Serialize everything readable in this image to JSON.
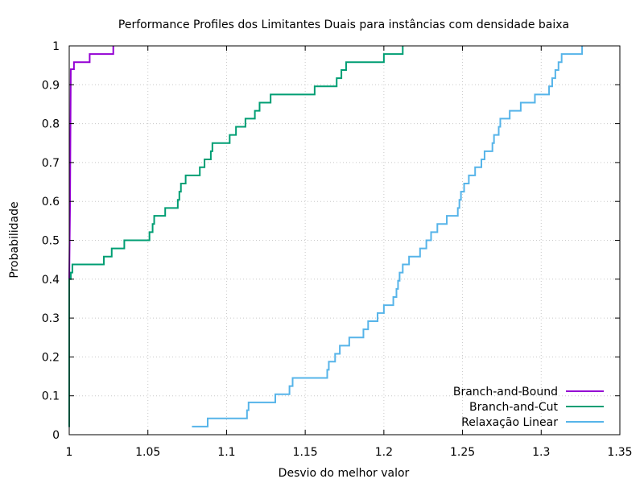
{
  "chart_data": {
    "type": "line",
    "title": "Performance Profiles dos Limitantes Duais para instâncias com densidade baixa",
    "xlabel": "Desvio do melhor valor",
    "ylabel": "Probabilidade",
    "xlim": [
      1,
      1.35
    ],
    "ylim": [
      0,
      1
    ],
    "xticks": [
      "1",
      "1.05",
      "1.1",
      "1.15",
      "1.2",
      "1.25",
      "1.3",
      "1.35"
    ],
    "yticks": [
      "0",
      "0.1",
      "0.2",
      "0.3",
      "0.4",
      "0.5",
      "0.6",
      "0.7",
      "0.8",
      "0.9",
      "1"
    ],
    "grid": true,
    "legend_position": "bottom-right",
    "series": [
      {
        "name": "Branch-and-Bound",
        "color": "#9400d3",
        "points": [
          [
            1.0,
            0.02
          ],
          [
            1.0,
            0.4
          ],
          [
            1.0005,
            0.58
          ],
          [
            1.001,
            0.94
          ],
          [
            1.003,
            0.94
          ],
          [
            1.003,
            0.958
          ],
          [
            1.013,
            0.958
          ],
          [
            1.013,
            0.979
          ],
          [
            1.028,
            0.979
          ],
          [
            1.028,
            1.0
          ]
        ]
      },
      {
        "name": "Branch-and-Cut",
        "color": "#009e73",
        "points": [
          [
            1.0,
            0.02
          ],
          [
            1.0,
            0.4
          ],
          [
            1.001,
            0.4
          ],
          [
            1.001,
            0.417
          ],
          [
            1.002,
            0.417
          ],
          [
            1.002,
            0.438
          ],
          [
            1.022,
            0.438
          ],
          [
            1.022,
            0.458
          ],
          [
            1.027,
            0.458
          ],
          [
            1.027,
            0.479
          ],
          [
            1.035,
            0.479
          ],
          [
            1.035,
            0.5
          ],
          [
            1.051,
            0.5
          ],
          [
            1.051,
            0.521
          ],
          [
            1.053,
            0.521
          ],
          [
            1.053,
            0.542
          ],
          [
            1.054,
            0.542
          ],
          [
            1.054,
            0.563
          ],
          [
            1.061,
            0.563
          ],
          [
            1.061,
            0.583
          ],
          [
            1.069,
            0.583
          ],
          [
            1.069,
            0.604
          ],
          [
            1.07,
            0.604
          ],
          [
            1.07,
            0.625
          ],
          [
            1.071,
            0.625
          ],
          [
            1.071,
            0.646
          ],
          [
            1.074,
            0.646
          ],
          [
            1.074,
            0.667
          ],
          [
            1.083,
            0.667
          ],
          [
            1.083,
            0.688
          ],
          [
            1.086,
            0.688
          ],
          [
            1.086,
            0.708
          ],
          [
            1.09,
            0.708
          ],
          [
            1.09,
            0.729
          ],
          [
            1.091,
            0.729
          ],
          [
            1.091,
            0.75
          ],
          [
            1.102,
            0.75
          ],
          [
            1.102,
            0.771
          ],
          [
            1.106,
            0.771
          ],
          [
            1.106,
            0.792
          ],
          [
            1.112,
            0.792
          ],
          [
            1.112,
            0.813
          ],
          [
            1.118,
            0.813
          ],
          [
            1.118,
            0.833
          ],
          [
            1.121,
            0.833
          ],
          [
            1.121,
            0.854
          ],
          [
            1.128,
            0.854
          ],
          [
            1.128,
            0.875
          ],
          [
            1.156,
            0.875
          ],
          [
            1.156,
            0.896
          ],
          [
            1.17,
            0.896
          ],
          [
            1.17,
            0.917
          ],
          [
            1.173,
            0.917
          ],
          [
            1.173,
            0.938
          ],
          [
            1.176,
            0.938
          ],
          [
            1.176,
            0.958
          ],
          [
            1.2,
            0.958
          ],
          [
            1.2,
            0.979
          ],
          [
            1.212,
            0.979
          ],
          [
            1.212,
            1.0
          ]
        ]
      },
      {
        "name": "Relaxação Linear",
        "color": "#56b4e9",
        "points": [
          [
            1.078,
            0.021
          ],
          [
            1.088,
            0.021
          ],
          [
            1.088,
            0.042
          ],
          [
            1.113,
            0.042
          ],
          [
            1.113,
            0.063
          ],
          [
            1.114,
            0.063
          ],
          [
            1.114,
            0.083
          ],
          [
            1.131,
            0.083
          ],
          [
            1.131,
            0.104
          ],
          [
            1.14,
            0.104
          ],
          [
            1.14,
            0.125
          ],
          [
            1.142,
            0.125
          ],
          [
            1.142,
            0.146
          ],
          [
            1.164,
            0.146
          ],
          [
            1.164,
            0.167
          ],
          [
            1.165,
            0.167
          ],
          [
            1.165,
            0.188
          ],
          [
            1.169,
            0.188
          ],
          [
            1.169,
            0.208
          ],
          [
            1.172,
            0.208
          ],
          [
            1.172,
            0.229
          ],
          [
            1.178,
            0.229
          ],
          [
            1.178,
            0.25
          ],
          [
            1.187,
            0.25
          ],
          [
            1.187,
            0.271
          ],
          [
            1.19,
            0.271
          ],
          [
            1.19,
            0.292
          ],
          [
            1.196,
            0.292
          ],
          [
            1.196,
            0.313
          ],
          [
            1.2,
            0.313
          ],
          [
            1.2,
            0.333
          ],
          [
            1.206,
            0.333
          ],
          [
            1.206,
            0.354
          ],
          [
            1.208,
            0.354
          ],
          [
            1.208,
            0.375
          ],
          [
            1.209,
            0.375
          ],
          [
            1.209,
            0.396
          ],
          [
            1.21,
            0.396
          ],
          [
            1.21,
            0.417
          ],
          [
            1.212,
            0.417
          ],
          [
            1.212,
            0.438
          ],
          [
            1.216,
            0.438
          ],
          [
            1.216,
            0.458
          ],
          [
            1.223,
            0.458
          ],
          [
            1.223,
            0.479
          ],
          [
            1.227,
            0.479
          ],
          [
            1.227,
            0.5
          ],
          [
            1.23,
            0.5
          ],
          [
            1.23,
            0.521
          ],
          [
            1.234,
            0.521
          ],
          [
            1.234,
            0.542
          ],
          [
            1.24,
            0.542
          ],
          [
            1.24,
            0.563
          ],
          [
            1.247,
            0.563
          ],
          [
            1.247,
            0.583
          ],
          [
            1.248,
            0.583
          ],
          [
            1.248,
            0.604
          ],
          [
            1.249,
            0.604
          ],
          [
            1.249,
            0.625
          ],
          [
            1.251,
            0.625
          ],
          [
            1.251,
            0.646
          ],
          [
            1.254,
            0.646
          ],
          [
            1.254,
            0.667
          ],
          [
            1.258,
            0.667
          ],
          [
            1.258,
            0.688
          ],
          [
            1.262,
            0.688
          ],
          [
            1.262,
            0.708
          ],
          [
            1.264,
            0.708
          ],
          [
            1.264,
            0.729
          ],
          [
            1.269,
            0.729
          ],
          [
            1.269,
            0.75
          ],
          [
            1.27,
            0.75
          ],
          [
            1.27,
            0.771
          ],
          [
            1.273,
            0.771
          ],
          [
            1.273,
            0.792
          ],
          [
            1.274,
            0.792
          ],
          [
            1.274,
            0.813
          ],
          [
            1.28,
            0.813
          ],
          [
            1.28,
            0.833
          ],
          [
            1.287,
            0.833
          ],
          [
            1.287,
            0.854
          ],
          [
            1.296,
            0.854
          ],
          [
            1.296,
            0.875
          ],
          [
            1.305,
            0.875
          ],
          [
            1.305,
            0.896
          ],
          [
            1.307,
            0.896
          ],
          [
            1.307,
            0.917
          ],
          [
            1.309,
            0.917
          ],
          [
            1.309,
            0.938
          ],
          [
            1.311,
            0.938
          ],
          [
            1.311,
            0.958
          ],
          [
            1.313,
            0.958
          ],
          [
            1.313,
            0.979
          ],
          [
            1.326,
            0.979
          ],
          [
            1.326,
            1.0
          ]
        ]
      }
    ]
  }
}
